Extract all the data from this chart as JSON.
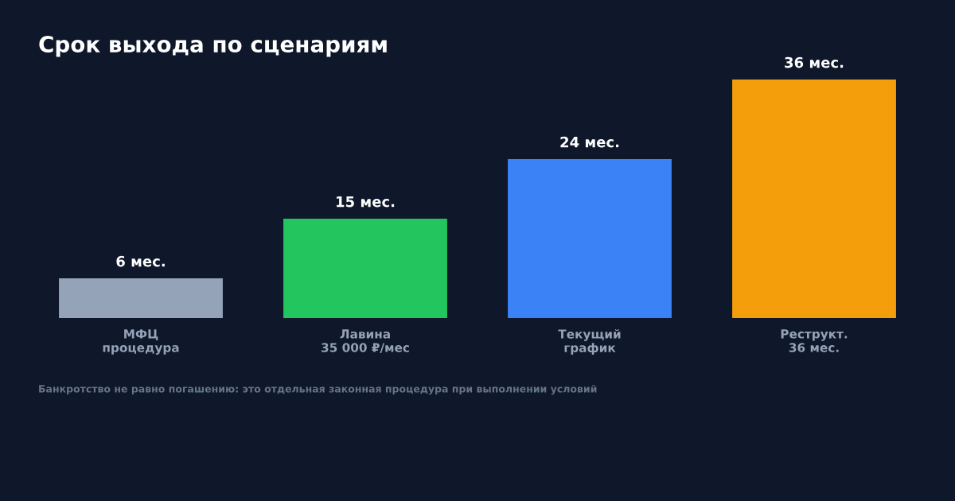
{
  "chart_data": {
    "type": "bar",
    "title": "Срок выхода по сценариям",
    "categories": [
      "МФЦ\nпроцедура",
      "Лавина\n35 000 ₽/мес",
      "Текущий\nграфик",
      "Реструкт.\n36 мес."
    ],
    "values": [
      6,
      15,
      24,
      36
    ],
    "colors": [
      "#94a3b8",
      "#22c55e",
      "#3b82f6",
      "#f59e0b"
    ],
    "value_labels": [
      "6 мес.",
      "15 мес.",
      "24 мес.",
      "36 мес."
    ],
    "tick_labels": "x",
    "grid": false,
    "legend": false,
    "annotations": [
      "Банкротство не равно погашению: это отдельная законная процедура при выполнении условий"
    ]
  }
}
